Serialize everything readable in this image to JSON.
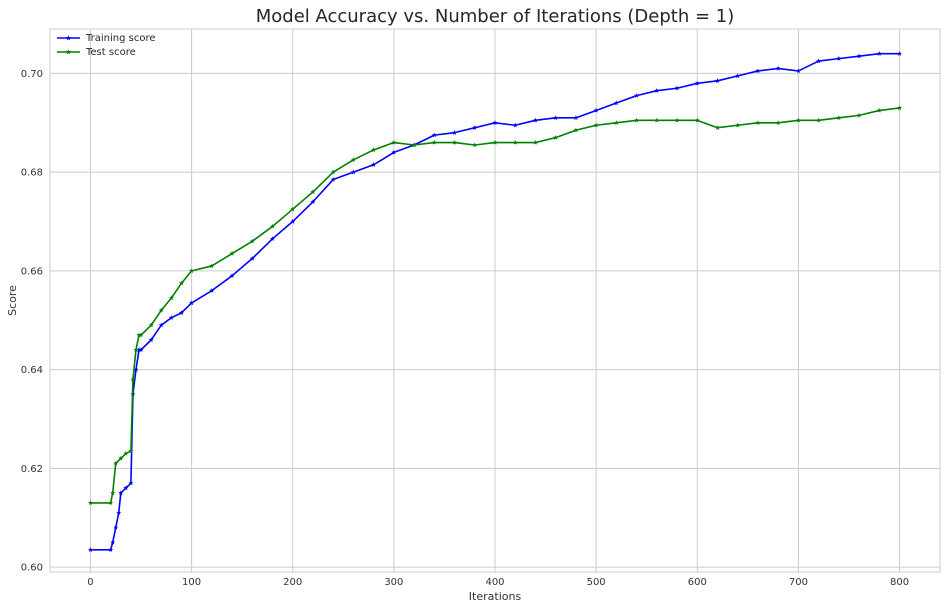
{
  "chart_data": {
    "type": "line",
    "title": "Model Accuracy vs. Number of Iterations (Depth = 1)",
    "xlabel": "Iterations",
    "ylabel": "Score",
    "xlim": [
      -40,
      840
    ],
    "ylim": [
      0.599,
      0.709
    ],
    "xticks": [
      0,
      100,
      200,
      300,
      400,
      500,
      600,
      700,
      800
    ],
    "yticks": [
      0.6,
      0.62,
      0.64,
      0.66,
      0.68,
      0.7
    ],
    "grid": true,
    "legend_position": "top-left",
    "series": [
      {
        "name": "Training score",
        "color": "#0000ff",
        "marker": "star",
        "points": [
          [
            0,
            0.6035
          ],
          [
            20,
            0.6035
          ],
          [
            22,
            0.605
          ],
          [
            25,
            0.608
          ],
          [
            28,
            0.611
          ],
          [
            30,
            0.615
          ],
          [
            35,
            0.616
          ],
          [
            40,
            0.617
          ],
          [
            42,
            0.635
          ],
          [
            45,
            0.64
          ],
          [
            48,
            0.644
          ],
          [
            50,
            0.644
          ],
          [
            60,
            0.646
          ],
          [
            70,
            0.649
          ],
          [
            80,
            0.6505
          ],
          [
            90,
            0.6515
          ],
          [
            100,
            0.6535
          ],
          [
            120,
            0.656
          ],
          [
            140,
            0.659
          ],
          [
            160,
            0.6625
          ],
          [
            180,
            0.6665
          ],
          [
            200,
            0.67
          ],
          [
            220,
            0.674
          ],
          [
            240,
            0.6785
          ],
          [
            260,
            0.68
          ],
          [
            280,
            0.6815
          ],
          [
            300,
            0.684
          ],
          [
            320,
            0.6855
          ],
          [
            340,
            0.6875
          ],
          [
            360,
            0.688
          ],
          [
            380,
            0.689
          ],
          [
            400,
            0.69
          ],
          [
            420,
            0.6895
          ],
          [
            440,
            0.6905
          ],
          [
            460,
            0.691
          ],
          [
            480,
            0.691
          ],
          [
            500,
            0.6925
          ],
          [
            520,
            0.694
          ],
          [
            540,
            0.6955
          ],
          [
            560,
            0.6965
          ],
          [
            580,
            0.697
          ],
          [
            600,
            0.698
          ],
          [
            620,
            0.6985
          ],
          [
            640,
            0.6995
          ],
          [
            660,
            0.7005
          ],
          [
            680,
            0.701
          ],
          [
            700,
            0.7005
          ],
          [
            720,
            0.7025
          ],
          [
            740,
            0.703
          ],
          [
            760,
            0.7035
          ],
          [
            780,
            0.704
          ],
          [
            800,
            0.704
          ]
        ]
      },
      {
        "name": "Test score",
        "color": "#008000",
        "marker": "star",
        "points": [
          [
            0,
            0.613
          ],
          [
            20,
            0.613
          ],
          [
            22,
            0.615
          ],
          [
            25,
            0.621
          ],
          [
            30,
            0.622
          ],
          [
            35,
            0.623
          ],
          [
            40,
            0.6235
          ],
          [
            42,
            0.638
          ],
          [
            45,
            0.644
          ],
          [
            48,
            0.647
          ],
          [
            50,
            0.647
          ],
          [
            60,
            0.649
          ],
          [
            70,
            0.652
          ],
          [
            80,
            0.6545
          ],
          [
            90,
            0.6575
          ],
          [
            100,
            0.66
          ],
          [
            120,
            0.661
          ],
          [
            140,
            0.6635
          ],
          [
            160,
            0.666
          ],
          [
            180,
            0.669
          ],
          [
            200,
            0.6725
          ],
          [
            220,
            0.676
          ],
          [
            240,
            0.68
          ],
          [
            260,
            0.6825
          ],
          [
            280,
            0.6845
          ],
          [
            300,
            0.686
          ],
          [
            320,
            0.6855
          ],
          [
            340,
            0.686
          ],
          [
            360,
            0.686
          ],
          [
            380,
            0.6855
          ],
          [
            400,
            0.686
          ],
          [
            420,
            0.686
          ],
          [
            440,
            0.686
          ],
          [
            460,
            0.687
          ],
          [
            480,
            0.6885
          ],
          [
            500,
            0.6895
          ],
          [
            520,
            0.69
          ],
          [
            540,
            0.6905
          ],
          [
            560,
            0.6905
          ],
          [
            580,
            0.6905
          ],
          [
            600,
            0.6905
          ],
          [
            620,
            0.689
          ],
          [
            640,
            0.6895
          ],
          [
            660,
            0.69
          ],
          [
            680,
            0.69
          ],
          [
            700,
            0.6905
          ],
          [
            720,
            0.6905
          ],
          [
            740,
            0.691
          ],
          [
            760,
            0.6915
          ],
          [
            780,
            0.6925
          ],
          [
            800,
            0.693
          ]
        ]
      }
    ]
  }
}
